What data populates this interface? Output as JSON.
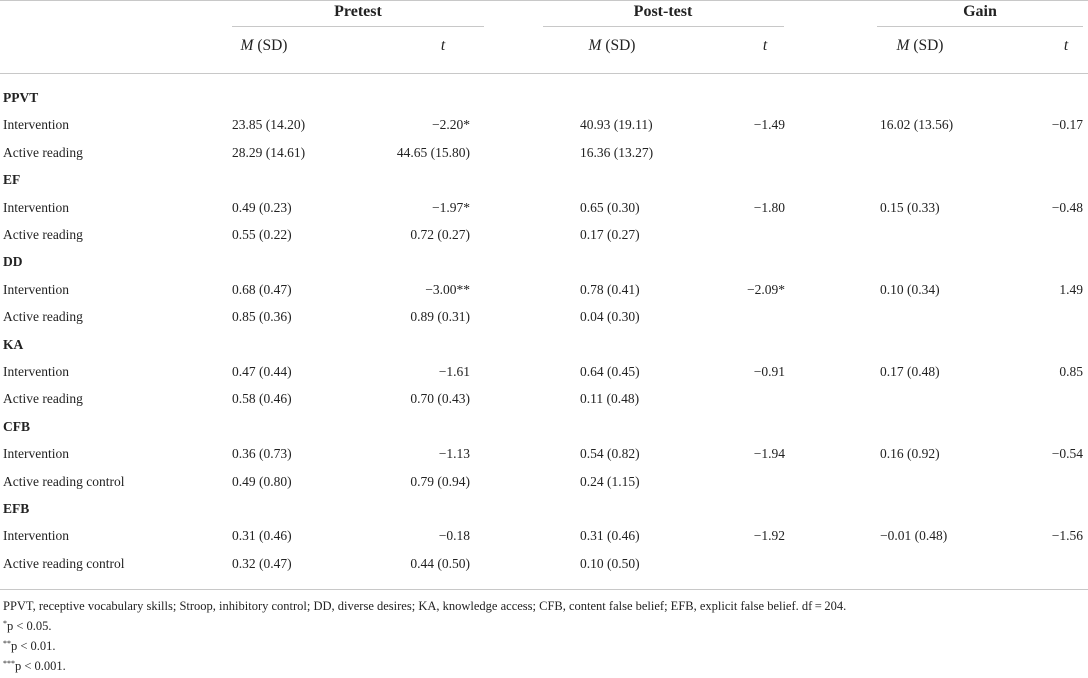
{
  "groups": [
    "Pretest",
    "Post-test",
    "Gain"
  ],
  "subheaders": {
    "m": "M",
    "sd": "(SD)",
    "t": "t"
  },
  "sections": [
    {
      "label": "PPVT",
      "rows": [
        [
          "Intervention",
          "23.85 (14.20)",
          "−2.20*",
          "40.93 (19.11)",
          "−1.49",
          "16.02 (13.56)",
          "−0.17"
        ],
        [
          "Active reading",
          "28.29 (14.61)",
          "44.65 (15.80)",
          "16.36 (13.27)",
          "",
          "",
          ""
        ]
      ]
    },
    {
      "label": "EF",
      "rows": [
        [
          "Intervention",
          "0.49 (0.23)",
          "−1.97*",
          "0.65 (0.30)",
          "−1.80",
          "0.15 (0.33)",
          "−0.48"
        ],
        [
          "Active reading",
          "0.55 (0.22)",
          "0.72 (0.27)",
          "0.17 (0.27)",
          "",
          "",
          ""
        ]
      ]
    },
    {
      "label": "DD",
      "rows": [
        [
          "Intervention",
          "0.68 (0.47)",
          "−3.00**",
          "0.78 (0.41)",
          "−2.09*",
          "0.10 (0.34)",
          "1.49"
        ],
        [
          "Active reading",
          "0.85 (0.36)",
          "0.89 (0.31)",
          "0.04 (0.30)",
          "",
          "",
          ""
        ]
      ]
    },
    {
      "label": "KA",
      "rows": [
        [
          "Intervention",
          "0.47 (0.44)",
          "−1.61",
          "0.64 (0.45)",
          "−0.91",
          "0.17 (0.48)",
          "0.85"
        ],
        [
          "Active reading",
          "0.58 (0.46)",
          "0.70 (0.43)",
          "0.11 (0.48)",
          "",
          "",
          ""
        ]
      ]
    },
    {
      "label": "CFB",
      "rows": [
        [
          "Intervention",
          "0.36 (0.73)",
          "−1.13",
          "0.54 (0.82)",
          "−1.94",
          "0.16 (0.92)",
          "−0.54"
        ],
        [
          "Active reading control",
          "0.49 (0.80)",
          "0.79 (0.94)",
          "0.24 (1.15)",
          "",
          "",
          ""
        ]
      ]
    },
    {
      "label": "EFB",
      "rows": [
        [
          "Intervention",
          "0.31 (0.46)",
          "−0.18",
          "0.31 (0.46)",
          "−1.92",
          "−0.01 (0.48)",
          "−1.56"
        ],
        [
          "Active reading control",
          "0.32 (0.47)",
          "0.44 (0.50)",
          "0.10 (0.50)",
          "",
          "",
          ""
        ]
      ]
    }
  ],
  "footnotes": {
    "abbrev": "PPVT, receptive vocabulary skills; Stroop, inhibitory control; DD, diverse desires; KA, knowledge access; CFB, content false belief; EFB, explicit false belief. df = 204.",
    "notes": [
      {
        "mark": "*",
        "text": "p < 0.05."
      },
      {
        "mark": "**",
        "text": "p < 0.01."
      },
      {
        "mark": "***",
        "text": "p < 0.001."
      }
    ]
  }
}
